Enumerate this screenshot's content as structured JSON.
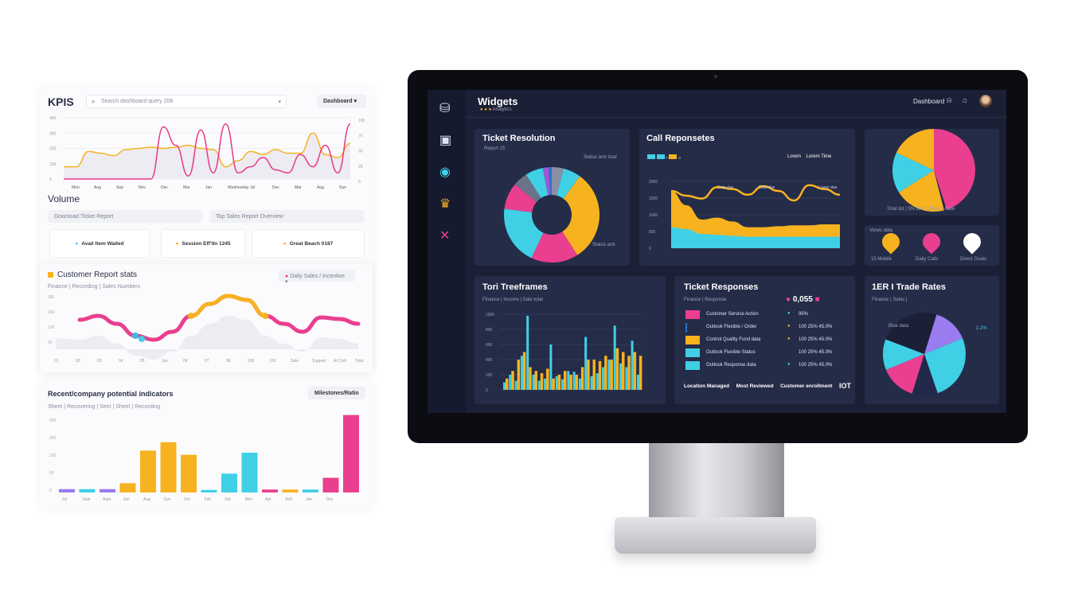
{
  "left_panel": {
    "title": "KPIS",
    "search_placeholder": "Search dashboard query 208",
    "dropdown": "Dashboard",
    "kpi_chart": {
      "y_ticks": [
        "400",
        "300",
        "200",
        "100",
        "0"
      ],
      "x_labels": [
        "Mon",
        "Aug",
        "Sep",
        "Nov",
        "Dec",
        "Mar",
        "Jan",
        "Wednesday",
        "Jul",
        "Dec",
        "Mar",
        "Aug",
        "Sun"
      ],
      "right_ticks": [
        "100",
        "75",
        "50",
        "25",
        "0"
      ],
      "series": [
        {
          "color": "#f7b21f",
          "values": [
            20,
            20,
            45,
            42,
            38,
            48,
            50,
            52,
            50,
            52,
            55,
            50,
            48,
            20,
            30,
            45,
            40,
            48,
            42,
            42,
            75,
            40,
            35,
            58
          ]
        },
        {
          "color": "#e8388a",
          "values": [
            0,
            0,
            0,
            0,
            0,
            0,
            0,
            0,
            85,
            55,
            5,
            80,
            10,
            90,
            10,
            20,
            35,
            15,
            10,
            40,
            20,
            55,
            10,
            90
          ]
        }
      ]
    },
    "volume_title": "Volume",
    "filters": [
      "Download Ticket Report",
      "Top Sales Report Overview"
    ],
    "stats": [
      {
        "label": "Avail Item Waited",
        "color": "#3fd0e6"
      },
      {
        "label": "Session Eff'tIn 1245",
        "color": "#f7b21f"
      },
      {
        "label": "Great Beach 0187",
        "color": "#f7b21f"
      }
    ],
    "customer": {
      "title": "Customer Report stats",
      "subtitle": "Finance | Recording | Sales Numbers",
      "dropdown": "Daily Sales / Incentive",
      "y_ticks": [
        "300",
        "200",
        "100",
        "50"
      ],
      "x_labels": [
        "01",
        "02",
        "03",
        "04",
        "05",
        "Jun",
        "06",
        "07",
        "08",
        "100",
        "105",
        "Sale",
        "Support",
        "At Chill",
        "Total"
      ],
      "wave": [
        35,
        40,
        30,
        15,
        10,
        20,
        40,
        55,
        65,
        60,
        40,
        30,
        20,
        38,
        36,
        30
      ]
    },
    "bars": {
      "title": "Recent/company potential indicators",
      "dropdown": "Milestones/Ratio",
      "legend": "Sheet | Recovering | Sent | Sheet | Recording",
      "y_ticks": [
        "300",
        "200",
        "100",
        "50",
        "0"
      ],
      "values": [
        8,
        8,
        8,
        22,
        100,
        120,
        90,
        6,
        45,
        95,
        7,
        7,
        7,
        35,
        185
      ],
      "colors": [
        "#9b7cf0",
        "#3fd0e6",
        "#9b7cf0",
        "#f7b21f",
        "#f7b21f",
        "#f7b21f",
        "#f7b21f",
        "#3fd0e6",
        "#3fd0e6",
        "#3fd0e6",
        "#ea3f8e",
        "#f7b21f",
        "#3fd0e6",
        "#ea3f8e",
        "#ea3f8e"
      ],
      "x_labels": [
        "Jul",
        "Sale",
        "Auto",
        "Jun",
        "Aug",
        "Sun",
        "Oct",
        "Fall",
        "Sat",
        "Mon",
        "Apr",
        "Ball",
        "Jan",
        "Dec"
      ]
    }
  },
  "dashboard": {
    "title": "Widgets",
    "subtitle": "Analytics",
    "header_link": "Dashboard",
    "sidebar_icons": [
      "briefcase-icon",
      "calendar-icon",
      "target-icon",
      "crown-icon",
      "x-icon"
    ],
    "ticket_resolution": {
      "title": "Ticket Resolution",
      "subtitle": "Report 15",
      "label_tr": "Status amt total",
      "label_br": "Status amt",
      "slices": [
        {
          "v": 4,
          "c": "#8a8fa3"
        },
        {
          "v": 6,
          "c": "#3fd0e6"
        },
        {
          "v": 31,
          "c": "#f7b21f"
        },
        {
          "v": 16,
          "c": "#ea3f8e"
        },
        {
          "v": 20,
          "c": "#3fd0e6"
        },
        {
          "v": 9,
          "c": "#ea3f8e"
        },
        {
          "v": 5,
          "c": "#6b7388"
        },
        {
          "v": 6,
          "c": "#3fd0e6"
        },
        {
          "v": 2,
          "c": "#9b58d0"
        },
        {
          "v": 1,
          "c": "#2e6fd0"
        }
      ]
    },
    "call_responses": {
      "title": "Call Reponsetes",
      "legend_right": [
        "Lorem",
        "Lorem Time"
      ],
      "y_ticks": [
        "2000",
        "1500",
        "1000",
        "500",
        "0"
      ],
      "line": [
        60,
        55,
        52,
        64,
        62,
        56,
        65,
        60,
        50,
        66,
        62,
        56
      ],
      "orange": [
        60,
        45,
        30,
        32,
        28,
        22,
        22,
        23,
        24,
        24,
        25,
        25
      ],
      "cyan": [
        22,
        20,
        15,
        14,
        13,
        12,
        12,
        12,
        12,
        12,
        12,
        12
      ],
      "labels": [
        "Data due",
        "Data due",
        "Lower due"
      ]
    },
    "pie_card": {
      "slices": [
        {
          "v": 45,
          "c": "#ea3f8e"
        },
        {
          "v": 1,
          "c": "#22284a"
        },
        {
          "v": 20,
          "c": "#f7b21f"
        },
        {
          "v": 16,
          "c": "#3fd0e6"
        },
        {
          "v": 18,
          "c": "#f7b21f"
        }
      ],
      "legend": "Total list | 5% DAY | Reach Rate"
    },
    "status_icons": {
      "title": "Views data",
      "labels": [
        "15 Mobile",
        "Daily Calls",
        "Direct Goals"
      ],
      "colors": [
        "#f7b21f",
        "#ea3f8e",
        "#ffffff"
      ]
    },
    "timeframes": {
      "title": "Tori Treeframes",
      "subtitle": "Finance | Income | Sale total",
      "y_ticks": [
        "1000",
        "800",
        "600",
        "400",
        "200",
        "0"
      ],
      "cyan": [
        10,
        20,
        12,
        45,
        98,
        20,
        12,
        15,
        60,
        18,
        14,
        25,
        24,
        15,
        70,
        18,
        22,
        30,
        40,
        85,
        35,
        30,
        65,
        20
      ],
      "orange": [
        15,
        25,
        40,
        50,
        30,
        25,
        22,
        28,
        15,
        20,
        25,
        20,
        20,
        30,
        40,
        40,
        38,
        45,
        40,
        55,
        50,
        45,
        50,
        45
      ]
    },
    "ticket_responses": {
      "title": "Ticket Responses",
      "subtitle": "Finance | Response",
      "kpi": "0,055",
      "rows": [
        {
          "name": "Customer Service Action",
          "val": "95%",
          "c": "#ea3f8e",
          "d": "#3fd0e6"
        },
        {
          "name": "Outlook Flexible / Order",
          "val": "100 25% 45.0%",
          "c": "#2e6fd0",
          "d": "#f7b21f"
        },
        {
          "name": "Control Quality Fund data",
          "val": "100 25% 45.0%",
          "c": "#f7b21f",
          "d": "#f7b21f"
        },
        {
          "name": "Outlook Flexible Status",
          "val": "100 25% 45.0%",
          "c": "#3fd0e6",
          "d": ""
        },
        {
          "name": "Outlook Response data",
          "val": "100 25% 45.0%",
          "c": "#3fd0e6",
          "d": "#3fd0e6"
        }
      ],
      "footer": [
        "Location Managed",
        "Most Reviewed",
        "Customer enrollment",
        "IOT"
      ]
    },
    "rate_card": {
      "title": "1ER I Trade Rates",
      "subtitle": "Finance | Sales |",
      "labels": [
        "Blue data",
        "1.2%"
      ],
      "slices": [
        {
          "v": 14,
          "c": "#9b7cf0"
        },
        {
          "v": 26,
          "c": "#3fd0e6"
        },
        {
          "v": 10,
          "c": "#22284a"
        },
        {
          "v": 14,
          "c": "#ea3f8e"
        },
        {
          "v": 12,
          "c": "#3fd0e6"
        },
        {
          "v": 24,
          "c": "#1b2036"
        }
      ]
    }
  }
}
